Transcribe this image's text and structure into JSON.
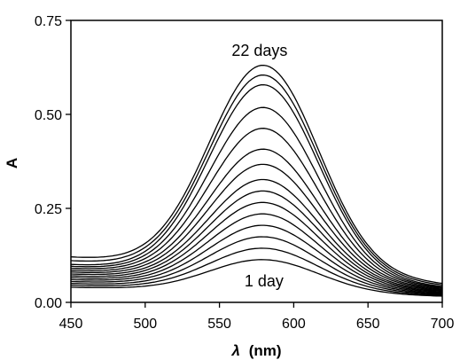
{
  "chart_data": {
    "type": "line",
    "xlabel_symbol": "λ",
    "xlabel_unit": "(nm)",
    "ylabel": "A",
    "xlim": [
      450,
      700
    ],
    "ylim": [
      0,
      0.75
    ],
    "x_ticks": [
      "450",
      "500",
      "550",
      "600",
      "650",
      "700"
    ],
    "y_ticks": [
      "0.00",
      "0.25",
      "0.50",
      "0.75"
    ],
    "grid": false,
    "annotations": {
      "top": "22 days",
      "bottom": "1 day"
    },
    "curve_model": {
      "peak_nm": 580,
      "width_nm": 52
    },
    "series": [
      {
        "peak": 0.11,
        "baseline": 0.04
      },
      {
        "peak": 0.14,
        "baseline": 0.045
      },
      {
        "peak": 0.17,
        "baseline": 0.05
      },
      {
        "peak": 0.2,
        "baseline": 0.055
      },
      {
        "peak": 0.23,
        "baseline": 0.06
      },
      {
        "peak": 0.26,
        "baseline": 0.065
      },
      {
        "peak": 0.29,
        "baseline": 0.07
      },
      {
        "peak": 0.32,
        "baseline": 0.075
      },
      {
        "peak": 0.36,
        "baseline": 0.08
      },
      {
        "peak": 0.4,
        "baseline": 0.085
      },
      {
        "peak": 0.455,
        "baseline": 0.09
      },
      {
        "peak": 0.51,
        "baseline": 0.095
      },
      {
        "peak": 0.57,
        "baseline": 0.1
      },
      {
        "peak": 0.595,
        "baseline": 0.11
      },
      {
        "peak": 0.62,
        "baseline": 0.12
      }
    ]
  }
}
